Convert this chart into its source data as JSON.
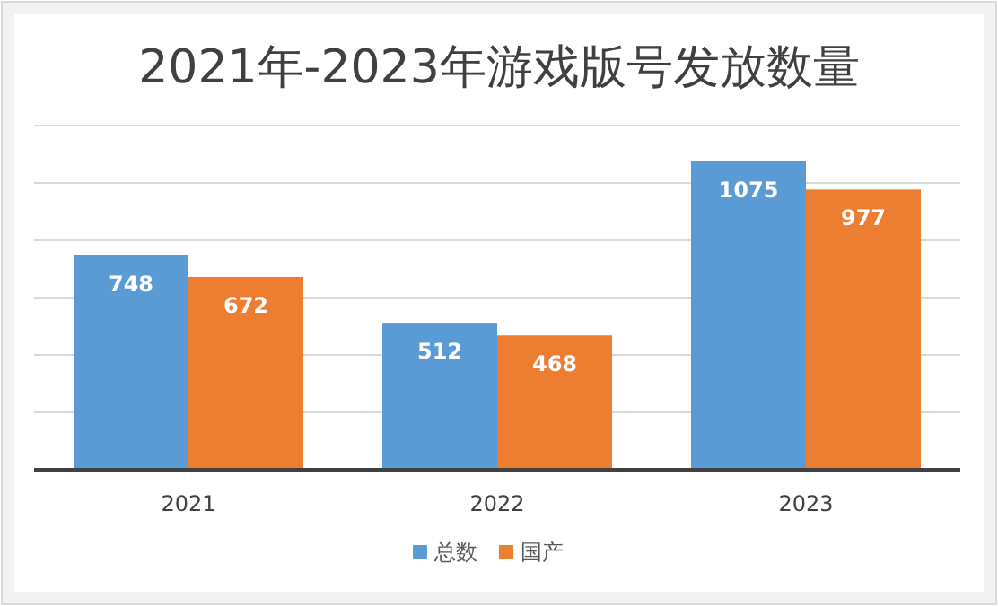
{
  "chart_data": {
    "type": "bar",
    "title": "2021年-2023年游戏版号发放数量",
    "categories": [
      "2021",
      "2022",
      "2023"
    ],
    "series": [
      {
        "name": "总数",
        "color": "#5b9bd5",
        "values": [
          748,
          512,
          1075
        ]
      },
      {
        "name": "国产",
        "color": "#ed7d31",
        "values": [
          672,
          468,
          977
        ]
      }
    ],
    "ylim": [
      0,
      1200
    ],
    "yticks": [
      {
        "value": 0,
        "label": null
      },
      {
        "value": 200,
        "label": null
      },
      {
        "value": 400,
        "label": null
      },
      {
        "value": 600,
        "label": null
      },
      {
        "value": 800,
        "label": null
      },
      {
        "value": 1000,
        "label": null
      },
      {
        "value": 1200,
        "label": null
      }
    ],
    "tick_labels": "x",
    "grid": "y",
    "data_labels": true,
    "legend": "bottom"
  }
}
